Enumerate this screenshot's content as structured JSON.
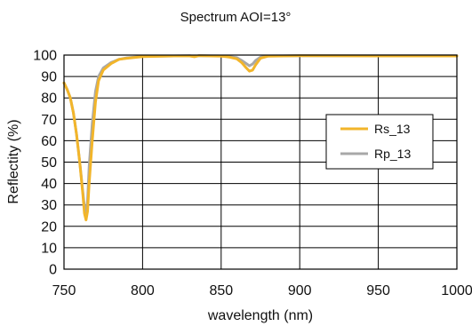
{
  "chart_data": {
    "type": "line",
    "title": "Spectrum AOI=13°",
    "xlabel": "wavelength (nm)",
    "ylabel": "Reflectity (%)",
    "xlim": [
      750,
      1000
    ],
    "ylim": [
      0,
      100
    ],
    "xticks": [
      750,
      800,
      850,
      900,
      950,
      1000
    ],
    "yticks": [
      0,
      10,
      20,
      30,
      40,
      50,
      60,
      70,
      80,
      90,
      100
    ],
    "grid": true,
    "legend_position": "right",
    "series": [
      {
        "name": "Rs_13",
        "color": "#f2b52a",
        "points": [
          [
            750,
            87
          ],
          [
            752,
            84
          ],
          [
            754,
            80
          ],
          [
            756,
            73
          ],
          [
            758,
            63
          ],
          [
            760,
            50
          ],
          [
            762,
            35
          ],
          [
            763,
            26
          ],
          [
            764,
            23
          ],
          [
            765,
            27
          ],
          [
            766,
            40
          ],
          [
            768,
            60
          ],
          [
            770,
            78
          ],
          [
            772,
            88
          ],
          [
            775,
            93
          ],
          [
            780,
            96
          ],
          [
            785,
            98
          ],
          [
            790,
            98.5
          ],
          [
            800,
            99.3
          ],
          [
            820,
            99.6
          ],
          [
            830,
            99.6
          ],
          [
            833,
            99.2
          ],
          [
            836,
            99.7
          ],
          [
            850,
            99.5
          ],
          [
            855,
            99.1
          ],
          [
            860,
            98.2
          ],
          [
            863,
            96.5
          ],
          [
            866,
            94
          ],
          [
            868,
            92.5
          ],
          [
            870,
            93
          ],
          [
            872,
            95.5
          ],
          [
            875,
            98.5
          ],
          [
            880,
            99.5
          ],
          [
            900,
            99.7
          ],
          [
            950,
            99.6
          ],
          [
            1000,
            99.6
          ]
        ]
      },
      {
        "name": "Rp_13",
        "color": "#a8a8a8",
        "points": [
          [
            750,
            87
          ],
          [
            752,
            84
          ],
          [
            754,
            80
          ],
          [
            756,
            73
          ],
          [
            758,
            63
          ],
          [
            760,
            50
          ],
          [
            762,
            36
          ],
          [
            763,
            29
          ],
          [
            764,
            26
          ],
          [
            765,
            32
          ],
          [
            766,
            48
          ],
          [
            768,
            68
          ],
          [
            770,
            83
          ],
          [
            772,
            90
          ],
          [
            775,
            94
          ],
          [
            780,
            96.5
          ],
          [
            785,
            98
          ],
          [
            790,
            98.7
          ],
          [
            800,
            99.4
          ],
          [
            820,
            99.6
          ],
          [
            830,
            99.7
          ],
          [
            833,
            99.4
          ],
          [
            836,
            99.7
          ],
          [
            850,
            99.6
          ],
          [
            855,
            99.3
          ],
          [
            860,
            98.8
          ],
          [
            863,
            97.5
          ],
          [
            866,
            96
          ],
          [
            868,
            95
          ],
          [
            870,
            95.8
          ],
          [
            872,
            97.5
          ],
          [
            875,
            99
          ],
          [
            880,
            99.6
          ],
          [
            900,
            99.7
          ],
          [
            950,
            99.7
          ],
          [
            1000,
            99.7
          ]
        ]
      }
    ]
  }
}
